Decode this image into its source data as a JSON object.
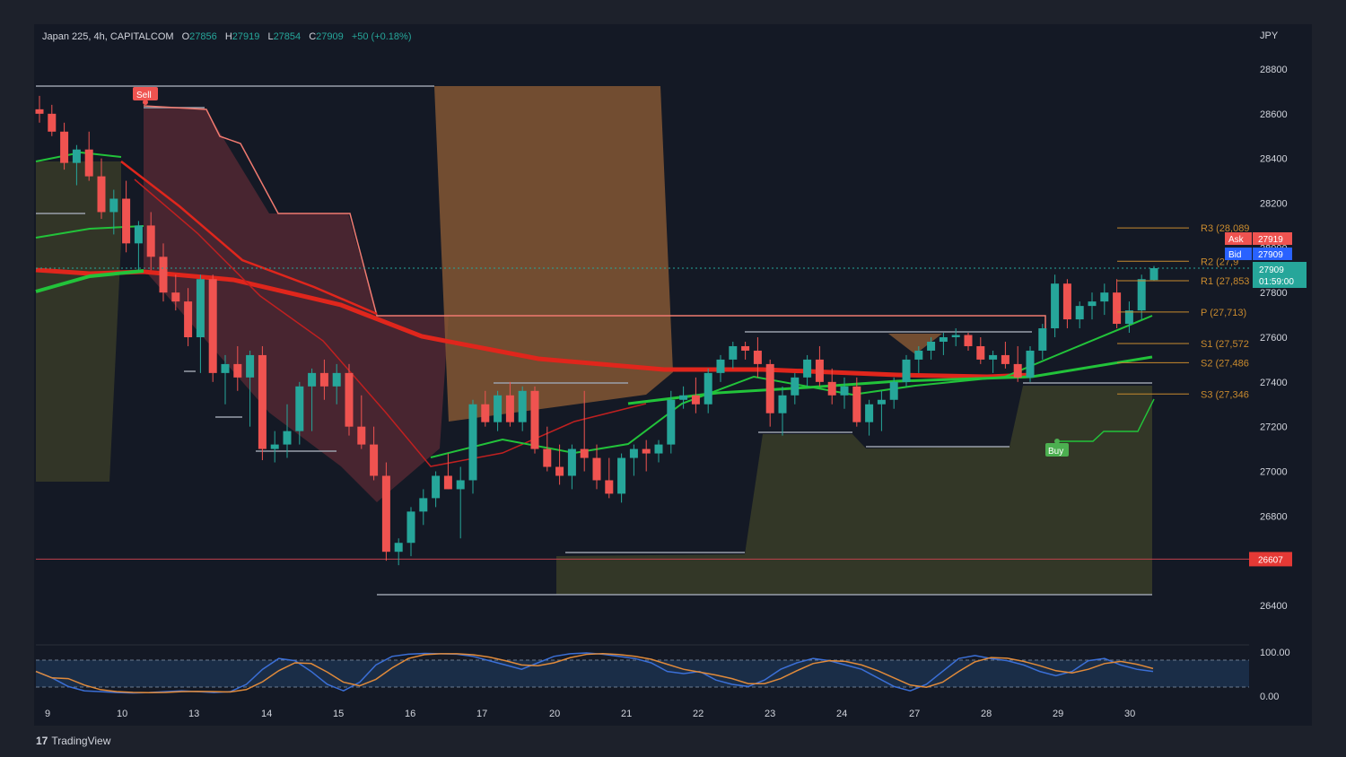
{
  "header": {
    "symbol": "Japan 225, 4h, CAPITALCOM",
    "open_label": "O",
    "open": "27856",
    "high_label": "H",
    "high": "27919",
    "low_label": "L",
    "low": "27854",
    "close_label": "C",
    "close": "27909",
    "change": "+50 (+0.18%)"
  },
  "currency": "JPY",
  "brand": {
    "logo": "17",
    "name": "TradingView"
  },
  "colors": {
    "bg": "#141925",
    "up": "#26a69a",
    "down": "#ef5350",
    "ema_red": "#e0261c",
    "ema_green": "#22c33a",
    "pivot": "#c88a2e",
    "sell_zone": "#5a2a34",
    "sell_line": "#f07a70",
    "orange_zone": "#8a5a34",
    "olive_zone": "#3e4228",
    "stoch_k": "#3b6fd6",
    "stoch_d": "#e08a3a"
  },
  "badges": {
    "sell": "Sell",
    "buy": "Buy",
    "ask_label": "Ask",
    "ask": "27919",
    "bid_label": "Bid",
    "bid": "27909",
    "last": "27909",
    "countdown": "01:59:00",
    "support_line": "26607"
  },
  "pivots": [
    {
      "label": "R3 (28,089",
      "value": 28089
    },
    {
      "label": "R2 (27,9",
      "value": 27940
    },
    {
      "label": "R1 (27,853",
      "value": 27853
    },
    {
      "label": "P (27,713)",
      "value": 27713
    },
    {
      "label": "S1 (27,572",
      "value": 27572
    },
    {
      "label": "S2 (27,486",
      "value": 27486
    },
    {
      "label": "S3 (27,346",
      "value": 27346
    }
  ],
  "oscillator": {
    "type": "stochastic",
    "upper": "100.00",
    "lower": "0.00"
  },
  "chart_data": {
    "type": "candlestick",
    "timeframe": "4h",
    "ylim": [
      26300,
      28900
    ],
    "yticks": [
      26400,
      26600,
      26800,
      27000,
      27200,
      27400,
      27600,
      27800,
      28000,
      28200,
      28400,
      28600,
      28800
    ],
    "xticks": [
      "9",
      "10",
      "13",
      "14",
      "15",
      "16",
      "17",
      "20",
      "21",
      "22",
      "23",
      "24",
      "27",
      "28",
      "29",
      "30"
    ],
    "horizontal_line": 26607,
    "candles": [
      [
        28620,
        28680,
        28560,
        28600
      ],
      [
        28600,
        28640,
        28500,
        28520
      ],
      [
        28520,
        28560,
        28350,
        28380
      ],
      [
        28380,
        28460,
        28280,
        28440
      ],
      [
        28440,
        28520,
        28300,
        28320
      ],
      [
        28320,
        28400,
        28130,
        28160
      ],
      [
        28160,
        28260,
        28060,
        28220
      ],
      [
        28220,
        28300,
        27980,
        28020
      ],
      [
        28020,
        28120,
        27900,
        28100
      ],
      [
        28100,
        28160,
        27900,
        27960
      ],
      [
        27960,
        28020,
        27760,
        27800
      ],
      [
        27800,
        27880,
        27720,
        27760
      ],
      [
        27760,
        27820,
        27560,
        27600
      ],
      [
        27600,
        27880,
        27440,
        27860
      ],
      [
        27860,
        27880,
        27400,
        27440
      ],
      [
        27440,
        27520,
        27300,
        27480
      ],
      [
        27480,
        27560,
        27360,
        27420
      ],
      [
        27420,
        27540,
        27200,
        27520
      ],
      [
        27520,
        27560,
        27050,
        27100
      ],
      [
        27100,
        27180,
        27040,
        27120
      ],
      [
        27120,
        27300,
        27060,
        27180
      ],
      [
        27180,
        27400,
        27120,
        27380
      ],
      [
        27380,
        27460,
        27180,
        27440
      ],
      [
        27440,
        27500,
        27320,
        27380
      ],
      [
        27380,
        27480,
        27300,
        27440
      ],
      [
        27440,
        27480,
        27160,
        27200
      ],
      [
        27200,
        27340,
        27100,
        27120
      ],
      [
        27120,
        27200,
        26960,
        26980
      ],
      [
        26980,
        27040,
        26600,
        26640
      ],
      [
        26640,
        26700,
        26580,
        26680
      ],
      [
        26680,
        26840,
        26620,
        26820
      ],
      [
        26820,
        26920,
        26760,
        26880
      ],
      [
        26880,
        27000,
        26840,
        26980
      ],
      [
        26980,
        27080,
        26920,
        26920
      ],
      [
        26920,
        27020,
        26700,
        26960
      ],
      [
        26960,
        27320,
        26900,
        27300
      ],
      [
        27300,
        27360,
        27200,
        27220
      ],
      [
        27220,
        27360,
        27180,
        27340
      ],
      [
        27340,
        27400,
        27200,
        27220
      ],
      [
        27220,
        27380,
        27180,
        27360
      ],
      [
        27360,
        27380,
        27080,
        27100
      ],
      [
        27100,
        27200,
        27000,
        27020
      ],
      [
        27020,
        27120,
        26940,
        26980
      ],
      [
        26980,
        27120,
        26920,
        27100
      ],
      [
        27100,
        27360,
        27000,
        27060
      ],
      [
        27060,
        27120,
        26920,
        26960
      ],
      [
        26960,
        27060,
        26880,
        26900
      ],
      [
        26900,
        27080,
        26860,
        27060
      ],
      [
        27060,
        27120,
        26980,
        27100
      ],
      [
        27100,
        27140,
        27000,
        27080
      ],
      [
        27080,
        27140,
        27040,
        27120
      ],
      [
        27120,
        27360,
        27080,
        27320
      ],
      [
        27320,
        27380,
        27280,
        27340
      ],
      [
        27340,
        27420,
        27260,
        27300
      ],
      [
        27300,
        27460,
        27260,
        27440
      ],
      [
        27440,
        27520,
        27400,
        27500
      ],
      [
        27500,
        27580,
        27460,
        27560
      ],
      [
        27560,
        27580,
        27500,
        27540
      ],
      [
        27540,
        27600,
        27420,
        27480
      ],
      [
        27480,
        27500,
        27200,
        27260
      ],
      [
        27260,
        27380,
        27160,
        27340
      ],
      [
        27340,
        27440,
        27300,
        27420
      ],
      [
        27420,
        27520,
        27380,
        27500
      ],
      [
        27500,
        27560,
        27380,
        27400
      ],
      [
        27400,
        27460,
        27300,
        27340
      ],
      [
        27340,
        27420,
        27280,
        27380
      ],
      [
        27380,
        27420,
        27200,
        27220
      ],
      [
        27220,
        27320,
        27160,
        27300
      ],
      [
        27300,
        27360,
        27180,
        27320
      ],
      [
        27320,
        27420,
        27280,
        27400
      ],
      [
        27400,
        27520,
        27380,
        27500
      ],
      [
        27500,
        27560,
        27440,
        27540
      ],
      [
        27540,
        27600,
        27500,
        27580
      ],
      [
        27580,
        27620,
        27520,
        27600
      ],
      [
        27600,
        27640,
        27560,
        27610
      ],
      [
        27610,
        27620,
        27540,
        27560
      ],
      [
        27560,
        27600,
        27480,
        27500
      ],
      [
        27500,
        27540,
        27440,
        27520
      ],
      [
        27520,
        27580,
        27460,
        27480
      ],
      [
        27480,
        27560,
        27400,
        27420
      ],
      [
        27420,
        27560,
        27400,
        27540
      ],
      [
        27540,
        27660,
        27500,
        27640
      ],
      [
        27640,
        27880,
        27600,
        27840
      ],
      [
        27840,
        27860,
        27640,
        27680
      ],
      [
        27680,
        27760,
        27640,
        27740
      ],
      [
        27740,
        27800,
        27680,
        27760
      ],
      [
        27760,
        27840,
        27700,
        27800
      ],
      [
        27800,
        27860,
        27640,
        27660
      ],
      [
        27660,
        27760,
        27620,
        27720
      ],
      [
        27720,
        27880,
        27680,
        27860
      ],
      [
        27856,
        27919,
        27854,
        27909
      ]
    ],
    "sell_signal": 28660,
    "buy_signal": 27140,
    "stochastic_range": [
      0,
      100
    ]
  }
}
